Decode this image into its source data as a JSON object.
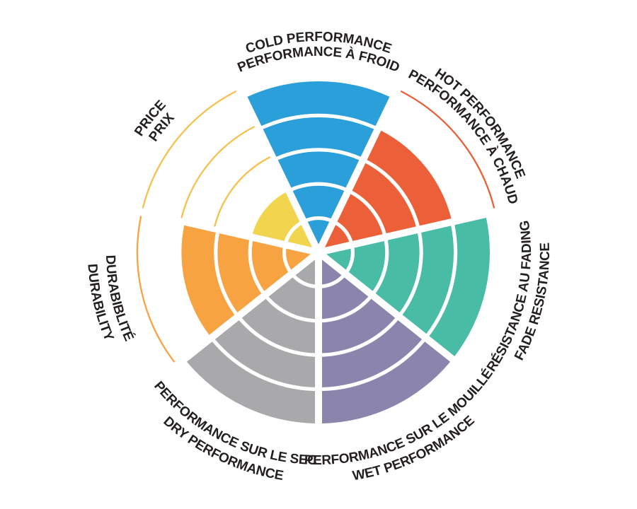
{
  "chart_data": {
    "type": "polar-sector-rating",
    "title": "",
    "max_rating": 5,
    "rings": 5,
    "legend_position": "radial-labels",
    "grid": "white ring gaps between concentric bands; unfilled rings shown as thin colored outline arcs",
    "background_color": "#FFFFFF",
    "text_color": "#231F20",
    "categories": [
      {
        "id": "cold",
        "label_en": "COLD PERFORMANCE",
        "label_fr": "PERFORMANCE À FROID",
        "value": 5,
        "color": "#2B9FD9",
        "arc_color": "#2B9FD9"
      },
      {
        "id": "hot",
        "label_en": "HOT PERFORMANCE",
        "label_fr": "PERFORMANCE À CHAUD",
        "value": 4,
        "color": "#EB6038",
        "arc_color": "#EB6038"
      },
      {
        "id": "fade",
        "label_en": "FADE RESISTANCE",
        "label_fr": "RÉSISTANCE AU FADING",
        "value": 5,
        "color": "#49BCA6",
        "arc_color": "#49BCA6"
      },
      {
        "id": "wet",
        "label_en": "WET PERFORMANCE",
        "label_fr": "PERFORMANCE SUR LE MOUILLÉ",
        "value": 5,
        "color": "#8B84AC",
        "arc_color": "#8B84AC"
      },
      {
        "id": "dry",
        "label_en": "DRY PERFORMANCE",
        "label_fr": "PERFORMANCE SUR LE SEC",
        "value": 5,
        "color": "#A9A8AB",
        "arc_color": "#A9A8AB"
      },
      {
        "id": "durability",
        "label_en": "DURABILITY",
        "label_fr": "DURABIBLITÉ",
        "value": 4,
        "color": "#F8A342",
        "arc_color": "#F8A342"
      },
      {
        "id": "price",
        "label_en": "PRICE",
        "label_fr": "PRIX",
        "value": 2,
        "color": "#F1D54E",
        "arc_color": "#F6C14E"
      }
    ]
  }
}
